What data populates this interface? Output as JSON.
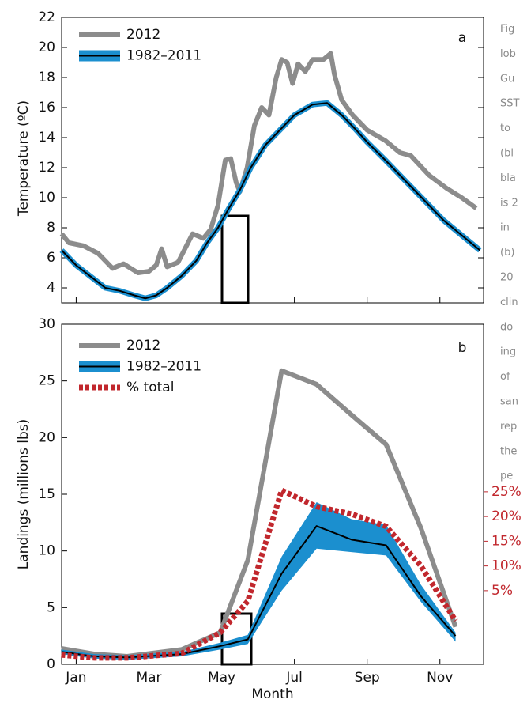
{
  "chart_data": [
    {
      "type": "line",
      "panel": "a",
      "ylabel": "Temperature (ºC)",
      "xlim": [
        0.6,
        12.2
      ],
      "ylim": [
        3,
        22
      ],
      "yticks": [
        4,
        6,
        8,
        10,
        12,
        14,
        16,
        18,
        20,
        22
      ],
      "series": [
        {
          "name": "2012",
          "color": "#8c8c8c",
          "x": [
            0.6,
            0.8,
            1.2,
            1.6,
            2.0,
            2.3,
            2.7,
            3.0,
            3.2,
            3.35,
            3.5,
            3.8,
            4.2,
            4.5,
            4.7,
            4.9,
            5.1,
            5.25,
            5.4,
            5.5,
            5.7,
            5.9,
            6.1,
            6.3,
            6.5,
            6.65,
            6.8,
            6.95,
            7.1,
            7.3,
            7.5,
            7.8,
            8.0,
            8.1,
            8.3,
            8.6,
            9.0,
            9.5,
            9.9,
            10.2,
            10.7,
            11.2,
            11.6,
            12.0
          ],
          "values": [
            7.6,
            7.0,
            6.8,
            6.3,
            5.3,
            5.6,
            5.0,
            5.1,
            5.5,
            6.6,
            5.4,
            5.7,
            7.6,
            7.3,
            7.9,
            9.5,
            12.5,
            12.6,
            11.0,
            10.4,
            12.0,
            14.8,
            16.0,
            15.5,
            18.0,
            19.2,
            19.0,
            17.6,
            18.9,
            18.4,
            19.2,
            19.2,
            19.6,
            18.2,
            16.5,
            15.5,
            14.5,
            13.8,
            13.0,
            12.8,
            11.5,
            10.6,
            10.0,
            9.3
          ]
        },
        {
          "name": "1982–2011",
          "color": "#000000",
          "band_color": "#1b8fcf",
          "x": [
            0.6,
            1.0,
            1.8,
            2.2,
            2.6,
            2.9,
            3.2,
            3.5,
            3.9,
            4.3,
            4.6,
            4.9,
            5.2,
            5.5,
            5.8,
            6.2,
            6.6,
            7.0,
            7.5,
            7.9,
            8.3,
            8.7,
            9.0,
            9.5,
            9.9,
            10.3,
            10.7,
            11.1,
            11.6,
            12.1
          ],
          "values": [
            6.5,
            5.5,
            4.0,
            3.8,
            3.5,
            3.3,
            3.5,
            4.0,
            4.8,
            5.8,
            7.0,
            8.0,
            9.3,
            10.5,
            12.0,
            13.5,
            14.5,
            15.5,
            16.2,
            16.3,
            15.5,
            14.5,
            13.7,
            12.5,
            11.5,
            10.5,
            9.5,
            8.5,
            7.5,
            6.5
          ]
        }
      ]
    },
    {
      "type": "line",
      "panel": "b",
      "ylabel": "Landings (millions lbs)",
      "xlabel": "Month",
      "xlim": [
        0.6,
        12.2
      ],
      "ylim": [
        0,
        30
      ],
      "yticks": [
        0,
        5,
        10,
        15,
        20,
        25,
        30
      ],
      "xticks": [
        {
          "value": 1,
          "label": "Jan"
        },
        {
          "value": 3,
          "label": "Mar"
        },
        {
          "value": 5,
          "label": "May"
        },
        {
          "value": 7,
          "label": "Jul"
        },
        {
          "value": 9,
          "label": "Sep"
        },
        {
          "value": 11,
          "label": "Nov"
        }
      ],
      "y2lim": [
        -9.9,
        58.9
      ],
      "y2ticks": [
        {
          "value": 5,
          "label": "5%"
        },
        {
          "value": 10,
          "label": "10%"
        },
        {
          "value": 15,
          "label": "15%"
        },
        {
          "value": 20,
          "label": "20%"
        },
        {
          "value": 25,
          "label": "25%"
        }
      ],
      "series": [
        {
          "name": "2012",
          "color": "#8c8c8c",
          "x": [
            0.59,
            1.5,
            2.4,
            3.9,
            4.96,
            5.72,
            6.65,
            7.61,
            8.57,
            9.52,
            10.48,
            11.43
          ],
          "values": [
            1.4,
            0.9,
            0.7,
            1.3,
            2.8,
            9.2,
            25.9,
            24.7,
            22.0,
            19.4,
            12.0,
            3.3
          ]
        },
        {
          "name": "1982–2011",
          "color": "#000000",
          "band_color": "#1b8fcf",
          "x": [
            0.59,
            1.5,
            2.4,
            3.9,
            4.96,
            5.72,
            6.65,
            7.61,
            8.57,
            9.52,
            10.48,
            11.43
          ],
          "values": [
            1.1,
            0.7,
            0.6,
            0.9,
            1.6,
            2.2,
            8.0,
            12.2,
            11.0,
            10.5,
            6.0,
            2.5
          ],
          "band_low": [
            0.9,
            0.5,
            0.4,
            0.7,
            1.3,
            1.8,
            6.5,
            10.2,
            9.9,
            9.6,
            5.5,
            2.0
          ],
          "band_high": [
            1.3,
            0.9,
            0.8,
            1.1,
            1.9,
            2.6,
            9.5,
            14.3,
            12.8,
            12.3,
            7.0,
            2.8
          ]
        },
        {
          "name": "% total",
          "color": "#c1272d",
          "axis": "y2",
          "dashed": true,
          "x": [
            0.59,
            1.5,
            2.4,
            3.9,
            4.96,
            5.72,
            6.65,
            7.61,
            8.57,
            9.52,
            10.48,
            11.43
          ],
          "values": [
            -8.0,
            -8.6,
            -8.6,
            -7.7,
            -3.5,
            2.9,
            25.3,
            22.0,
            20.5,
            18.0,
            10.0,
            -1.1
          ]
        }
      ]
    }
  ],
  "caption_lines": [
    "Fig",
    "lob",
    "Gu",
    "SST",
    "to",
    "(bl",
    "bla",
    "is 2",
    "in",
    "(b)",
    "20",
    "clin",
    "do",
    "ing",
    "of",
    "san",
    "rep",
    "the",
    "pe"
  ]
}
